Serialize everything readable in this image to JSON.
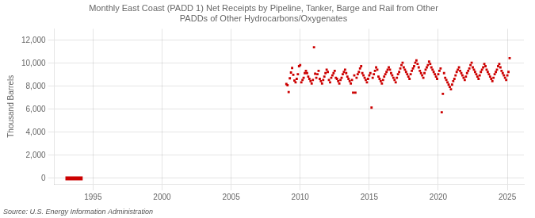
{
  "chart_data": {
    "type": "scatter",
    "title": "Monthly East Coast (PADD 1) Net Receipts by Pipeline, Tanker, Barge and Rail from Other\nPADDs of Other Hydrocarbons/Oxygenates",
    "ylabel": "Thousand Barrels",
    "source": "Source: U.S. Energy Information Administration",
    "xlim": [
      1992.2,
      2026.2
    ],
    "xticks": [
      1995,
      2000,
      2005,
      2010,
      2015,
      2020,
      2025
    ],
    "ylim": [
      -500,
      13000
    ],
    "yticks": [
      0,
      {
        "value": 2000,
        "label": "2,000"
      },
      {
        "value": 4000,
        "label": "4,000"
      },
      {
        "value": 6000,
        "label": "6,000"
      },
      {
        "value": 8000,
        "label": "8,000"
      },
      {
        "value": 10000,
        "label": "10,000"
      },
      {
        "value": 12000,
        "label": "12,000"
      }
    ],
    "grid": true,
    "series": [
      {
        "type": "line",
        "line_style": "solid",
        "color": "#cc0000",
        "x": [
          1993.0,
          1994.25
        ],
        "values": [
          0,
          0
        ]
      },
      {
        "type": "scatter",
        "marker": "square",
        "color": "#cc0000",
        "x": [
          2009.0,
          2009.083,
          2009.167,
          2009.25,
          2009.333,
          2009.417,
          2009.5,
          2009.583,
          2009.667,
          2009.75,
          2009.833,
          2009.917,
          2010.0,
          2010.083,
          2010.167,
          2010.25,
          2010.333,
          2010.417,
          2010.5,
          2010.583,
          2010.667,
          2010.75,
          2010.833,
          2010.917,
          2011.0,
          2011.083,
          2011.167,
          2011.25,
          2011.333,
          2011.417,
          2011.5,
          2011.583,
          2011.667,
          2011.75,
          2011.833,
          2011.917,
          2012.0,
          2012.083,
          2012.167,
          2012.25,
          2012.333,
          2012.417,
          2012.5,
          2012.583,
          2012.667,
          2012.75,
          2012.833,
          2012.917,
          2013.0,
          2013.083,
          2013.167,
          2013.25,
          2013.333,
          2013.417,
          2013.5,
          2013.583,
          2013.667,
          2013.75,
          2013.833,
          2013.917,
          2014.0,
          2014.083,
          2014.167,
          2014.25,
          2014.333,
          2014.417,
          2014.5,
          2014.583,
          2014.667,
          2014.75,
          2014.833,
          2014.917,
          2015.0,
          2015.083,
          2015.167,
          2015.25,
          2015.333,
          2015.417,
          2015.5,
          2015.583,
          2015.667,
          2015.75,
          2015.833,
          2015.917,
          2016.0,
          2016.083,
          2016.167,
          2016.25,
          2016.333,
          2016.417,
          2016.5,
          2016.583,
          2016.667,
          2016.75,
          2016.833,
          2016.917,
          2017.0,
          2017.083,
          2017.167,
          2017.25,
          2017.333,
          2017.417,
          2017.5,
          2017.583,
          2017.667,
          2017.75,
          2017.833,
          2017.917,
          2018.0,
          2018.083,
          2018.167,
          2018.25,
          2018.333,
          2018.417,
          2018.5,
          2018.583,
          2018.667,
          2018.75,
          2018.833,
          2018.917,
          2019.0,
          2019.083,
          2019.167,
          2019.25,
          2019.333,
          2019.417,
          2019.5,
          2019.583,
          2019.667,
          2019.75,
          2019.833,
          2019.917,
          2020.0,
          2020.083,
          2020.167,
          2020.25,
          2020.333,
          2020.417,
          2020.5,
          2020.583,
          2020.667,
          2020.75,
          2020.833,
          2020.917,
          2021.0,
          2021.083,
          2021.167,
          2021.25,
          2021.333,
          2021.417,
          2021.5,
          2021.583,
          2021.667,
          2021.75,
          2021.833,
          2021.917,
          2022.0,
          2022.083,
          2022.167,
          2022.25,
          2022.333,
          2022.417,
          2022.5,
          2022.583,
          2022.667,
          2022.75,
          2022.833,
          2022.917,
          2023.0,
          2023.083,
          2023.167,
          2023.25,
          2023.333,
          2023.417,
          2023.5,
          2023.583,
          2023.667,
          2023.75,
          2023.833,
          2023.917,
          2024.0,
          2024.083,
          2024.167,
          2024.25,
          2024.333,
          2024.417,
          2024.5,
          2024.583,
          2024.667,
          2024.75,
          2024.833,
          2024.917,
          2025.0,
          2025.083,
          2025.167
        ],
        "values": [
          8200,
          8100,
          7500,
          8700,
          9200,
          9600,
          9000,
          8500,
          8350,
          8650,
          9050,
          9750,
          9850,
          8350,
          8550,
          8750,
          9150,
          9350,
          9150,
          8850,
          8650,
          8450,
          8250,
          8550,
          11400,
          9100,
          8750,
          9050,
          9350,
          8650,
          8450,
          8250,
          8550,
          8850,
          9150,
          9450,
          9250,
          8550,
          8350,
          8750,
          8950,
          9150,
          9350,
          8750,
          8650,
          8450,
          8250,
          8550,
          8750,
          9050,
          9250,
          9450,
          9150,
          8850,
          8650,
          8450,
          8250,
          8550,
          7450,
          8950,
          7450,
          8750,
          9050,
          9250,
          9550,
          9750,
          9150,
          8950,
          8750,
          8550,
          8350,
          8650,
          8950,
          9150,
          6150,
          8750,
          9050,
          9350,
          9650,
          9450,
          8850,
          8650,
          8450,
          8250,
          8550,
          8850,
          9050,
          9250,
          9450,
          9650,
          9450,
          9150,
          8950,
          8750,
          8550,
          8350,
          8750,
          9050,
          9250,
          9550,
          9850,
          10050,
          9650,
          9450,
          9250,
          9050,
          8850,
          8650,
          9050,
          9350,
          9550,
          9750,
          10050,
          10250,
          9950,
          9650,
          9350,
          9150,
          8950,
          8750,
          9150,
          9450,
          9650,
          9850,
          10150,
          9950,
          9650,
          9450,
          9250,
          9050,
          8850,
          8650,
          9050,
          9350,
          9550,
          5750,
          7350,
          9150,
          8750,
          8550,
          8350,
          8150,
          7950,
          7750,
          8150,
          8450,
          8650,
          8950,
          9250,
          9450,
          9650,
          9350,
          9150,
          8950,
          8750,
          8550,
          8850,
          9150,
          9350,
          9550,
          9850,
          10050,
          9650,
          9450,
          9250,
          9050,
          8850,
          8650,
          8950,
          9250,
          9450,
          9650,
          9950,
          9750,
          9450,
          9250,
          9050,
          8850,
          8650,
          8450,
          8750,
          9050,
          9250,
          9450,
          9750,
          9950,
          9650,
          9350,
          9150,
          8950,
          8750,
          8550,
          8950,
          9250,
          10450
        ]
      }
    ]
  }
}
